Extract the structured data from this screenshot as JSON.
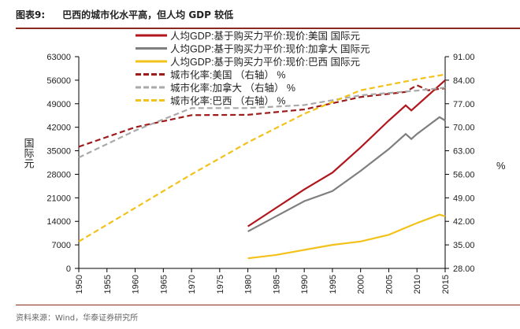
{
  "header": {
    "figure_label": "图表9:",
    "title": "巴西的城市化水平高，但人均 GDP 较低"
  },
  "footer": {
    "source": "资料来源：Wind，华泰证券研究所"
  },
  "chart_data": {
    "type": "line",
    "title": "",
    "xlabel": "",
    "ylabel_left": "国际元",
    "ylabel_right": "%",
    "x_ticks": [
      1950,
      1955,
      1960,
      1965,
      1970,
      1975,
      1980,
      1985,
      1990,
      1995,
      2000,
      2005,
      2010,
      2015
    ],
    "ylim_left": [
      0,
      63000
    ],
    "yticks_left": [
      "0",
      "7000",
      "14000",
      "21000",
      "28000",
      "35000",
      "42000",
      "49000",
      "56000",
      "63000"
    ],
    "ylim_right": [
      28,
      91
    ],
    "yticks_right": [
      "28.00",
      "35.00",
      "42.00",
      "49.00",
      "56.00",
      "63.00",
      "70.00",
      "77.00",
      "84.00",
      "91.00"
    ],
    "grid": false,
    "legend_placement": "top-left",
    "series": [
      {
        "name": "人均GDP:基于购买力平价:现价:美国 国际元",
        "axis": "left",
        "style": "solid",
        "color": "#b0161c",
        "x": [
          1980,
          1985,
          1990,
          1995,
          2000,
          2005,
          2008,
          2009,
          2010,
          2013,
          2015
        ],
        "y": [
          12500,
          18000,
          23500,
          28500,
          36000,
          44000,
          48500,
          47000,
          48500,
          53000,
          56000
        ]
      },
      {
        "name": "人均GDP:基于购买力平价:现价:加拿大 国际元",
        "axis": "left",
        "style": "solid",
        "color": "#7f7f7f",
        "x": [
          1980,
          1985,
          1990,
          1995,
          2000,
          2005,
          2008,
          2009,
          2010,
          2014,
          2015
        ],
        "y": [
          11000,
          15500,
          20000,
          23000,
          29000,
          35500,
          40000,
          38500,
          40000,
          45000,
          44000
        ]
      },
      {
        "name": "人均GDP:基于购买力平价:现价:巴西 国际元",
        "axis": "left",
        "style": "solid",
        "color": "#f2c11a",
        "x": [
          1980,
          1985,
          1990,
          1995,
          2000,
          2005,
          2010,
          2014,
          2015
        ],
        "y": [
          3000,
          4000,
          5500,
          7000,
          8000,
          10000,
          13500,
          16000,
          15500
        ]
      },
      {
        "name": "城市化率:美国 （右轴） %",
        "axis": "right",
        "style": "dashed",
        "color": "#9e1b1b",
        "x": [
          1950,
          1960,
          1970,
          1980,
          1990,
          2000,
          2008,
          2010,
          2012,
          2015
        ],
        "y": [
          64.2,
          70,
          73.6,
          73.7,
          75.3,
          79,
          80.5,
          82.5,
          81,
          81.6
        ]
      },
      {
        "name": "城市化率:加拿大 （右轴） %",
        "axis": "right",
        "style": "dashed",
        "color": "#a9a9a9",
        "x": [
          1950,
          1960,
          1970,
          1980,
          1990,
          2000,
          2010,
          2015
        ],
        "y": [
          61,
          69,
          75.7,
          75.7,
          76.6,
          79.5,
          80.9,
          81.8
        ]
      },
      {
        "name": "城市化率:巴西 （右轴） %",
        "axis": "right",
        "style": "dashed",
        "color": "#f2c11a",
        "x": [
          1950,
          1960,
          1970,
          1980,
          1990,
          2000,
          2010,
          2015
        ],
        "y": [
          36,
          46,
          56,
          65.5,
          74,
          81,
          84.3,
          85.7
        ]
      }
    ]
  }
}
